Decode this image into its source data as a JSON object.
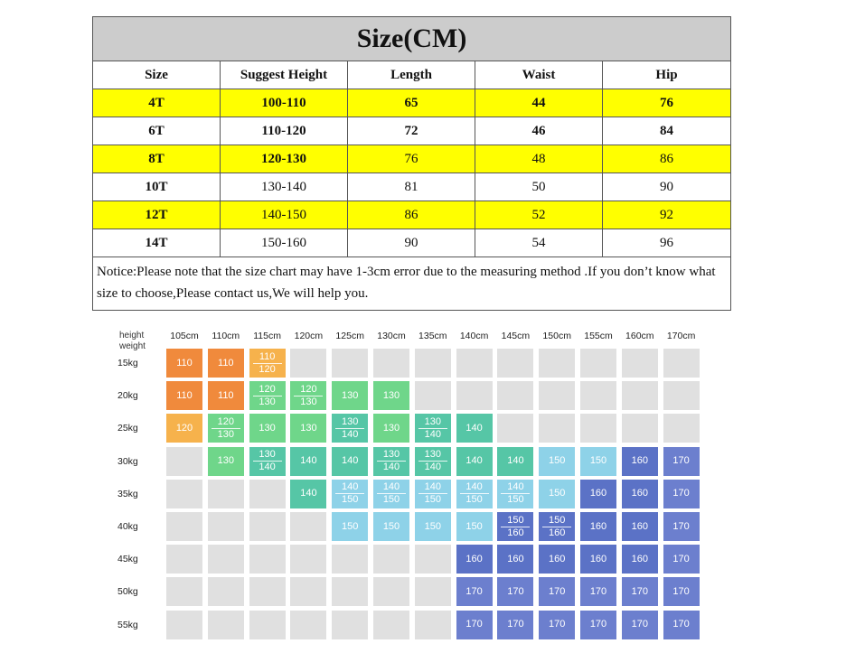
{
  "size_table": {
    "title": "Size(CM)",
    "headers": [
      "Size",
      "Suggest Height",
      "Length",
      "Waist",
      "Hip"
    ],
    "rows": [
      [
        "4T",
        "100-110",
        "65",
        "44",
        "76"
      ],
      [
        "6T",
        "110-120",
        "72",
        "46",
        "84"
      ],
      [
        "8T",
        "120-130",
        "76",
        "48",
        "86"
      ],
      [
        "10T",
        "130-140",
        "81",
        "50",
        "90"
      ],
      [
        "12T",
        "140-150",
        "86",
        "52",
        "92"
      ],
      [
        "14T",
        "150-160",
        "90",
        "54",
        "96"
      ]
    ],
    "highlight_color": "#ffff00",
    "notice": "Notice:Please note that the size chart may have 1-3cm error due to the measuring method .If you don’t know what size to choose,Please contact us,We will help you."
  },
  "height_weight_grid": {
    "corner_top": "height",
    "corner_bottom": "weight",
    "heights": [
      "105cm",
      "110cm",
      "115cm",
      "120cm",
      "125cm",
      "130cm",
      "135cm",
      "140cm",
      "145cm",
      "150cm",
      "155cm",
      "160cm",
      "170cm"
    ],
    "weights": [
      "15kg",
      "20kg",
      "25kg",
      "30kg",
      "35kg",
      "40kg",
      "45kg",
      "50kg",
      "55kg"
    ],
    "empty_color": "#e0e0e0",
    "size_colors": {
      "110": "#f08a3c",
      "120": "#f6b24c",
      "130": "#6fd68a",
      "140": "#56c6a6",
      "150": "#8ed2e8",
      "160": "#5b72c6",
      "170": "#6c7fce"
    },
    "cells": [
      [
        [
          "110"
        ],
        [
          "110"
        ],
        [
          "110",
          "120"
        ],
        [],
        [],
        [],
        [],
        [],
        [],
        [],
        [],
        [],
        []
      ],
      [
        [
          "110"
        ],
        [
          "110"
        ],
        [
          "120",
          "130"
        ],
        [
          "120",
          "130"
        ],
        [
          "130"
        ],
        [
          "130"
        ],
        [],
        [],
        [],
        [],
        [],
        [],
        []
      ],
      [
        [
          "120"
        ],
        [
          "120",
          "130"
        ],
        [
          "130"
        ],
        [
          "130"
        ],
        [
          "130",
          "140"
        ],
        [
          "130"
        ],
        [
          "130",
          "140"
        ],
        [
          "140"
        ],
        [],
        [],
        [],
        [],
        []
      ],
      [
        [],
        [
          "130"
        ],
        [
          "130",
          "140"
        ],
        [
          "140"
        ],
        [
          "140"
        ],
        [
          "130",
          "140"
        ],
        [
          "130",
          "140"
        ],
        [
          "140"
        ],
        [
          "140"
        ],
        [
          "150"
        ],
        [
          "150"
        ],
        [
          "160"
        ],
        [
          "170"
        ]
      ],
      [
        [],
        [],
        [],
        [
          "140"
        ],
        [
          "140",
          "150"
        ],
        [
          "140",
          "150"
        ],
        [
          "140",
          "150"
        ],
        [
          "140",
          "150"
        ],
        [
          "140",
          "150"
        ],
        [
          "150"
        ],
        [
          "160"
        ],
        [
          "160"
        ],
        [
          "170"
        ]
      ],
      [
        [],
        [],
        [],
        [],
        [
          "150"
        ],
        [
          "150"
        ],
        [
          "150"
        ],
        [
          "150"
        ],
        [
          "150",
          "160"
        ],
        [
          "150",
          "160"
        ],
        [
          "160"
        ],
        [
          "160"
        ],
        [
          "170"
        ]
      ],
      [
        [],
        [],
        [],
        [],
        [],
        [],
        [],
        [
          "160"
        ],
        [
          "160"
        ],
        [
          "160"
        ],
        [
          "160"
        ],
        [
          "160"
        ],
        [
          "170"
        ]
      ],
      [
        [],
        [],
        [],
        [],
        [],
        [],
        [],
        [
          "170"
        ],
        [
          "170"
        ],
        [
          "170"
        ],
        [
          "170"
        ],
        [
          "170"
        ],
        [
          "170"
        ]
      ],
      [
        [],
        [],
        [],
        [],
        [],
        [],
        [],
        [
          "170"
        ],
        [
          "170"
        ],
        [
          "170"
        ],
        [
          "170"
        ],
        [
          "170"
        ],
        [
          "170"
        ]
      ]
    ]
  }
}
